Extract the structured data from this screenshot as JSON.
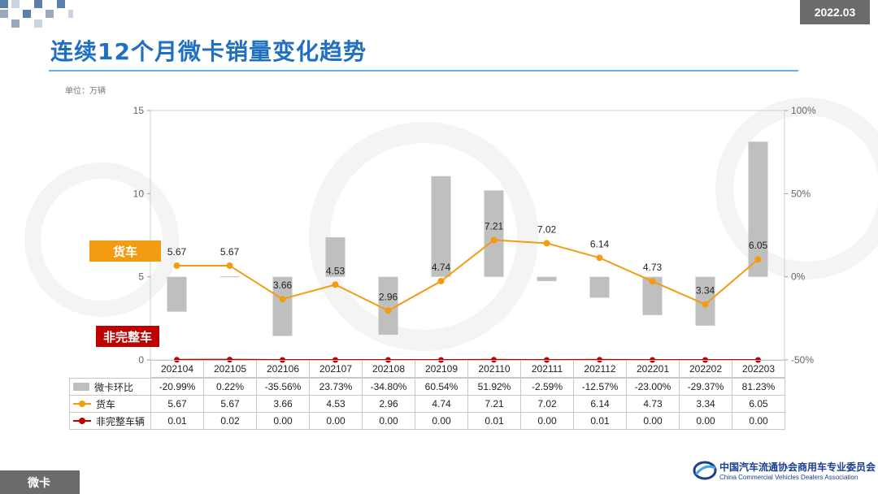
{
  "header": {
    "date": "2022.03",
    "title": "连续12个月微卡销量变化趋势"
  },
  "unit_label": "单位：万辆",
  "tags": {
    "truck": "货车",
    "incomplete": "非完整车"
  },
  "footer": {
    "tab": "微卡",
    "org_cn": "中国汽车流通协会商用车专业委员会",
    "org_en": "China Commercial Vehicles Dealers Association"
  },
  "colors": {
    "accent": "#1f6fc2",
    "truck": "#f39c12",
    "incomplete": "#c00000",
    "bar": "#bfbfbf",
    "tag_truck": "#f39c12",
    "tag_incomplete": "#c00000"
  },
  "chart_data": {
    "type": "bar+line",
    "categories": [
      "202104",
      "202105",
      "202106",
      "202107",
      "202108",
      "202109",
      "202110",
      "202111",
      "202112",
      "202201",
      "202202",
      "202203"
    ],
    "series": [
      {
        "name": "微卡环比",
        "type": "bar",
        "axis": "right",
        "values": [
          -20.99,
          0.22,
          -35.56,
          23.73,
          -34.8,
          60.54,
          51.92,
          -2.59,
          -12.57,
          -23.0,
          -29.37,
          81.23
        ],
        "labels": [
          "-20.99%",
          "0.22%",
          "-35.56%",
          "23.73%",
          "-34.80%",
          "60.54%",
          "51.92%",
          "-2.59%",
          "-12.57%",
          "-23.00%",
          "-29.37%",
          "81.23%"
        ]
      },
      {
        "name": "货车",
        "type": "line",
        "axis": "left",
        "values": [
          5.67,
          5.67,
          3.66,
          4.53,
          2.96,
          4.74,
          7.21,
          7.02,
          6.14,
          4.73,
          3.34,
          6.05
        ],
        "labels": [
          "5.67",
          "5.67",
          "3.66",
          "4.53",
          "2.96",
          "4.74",
          "7.21",
          "7.02",
          "6.14",
          "4.73",
          "3.34",
          "6.05"
        ]
      },
      {
        "name": "非完整车辆",
        "type": "line",
        "axis": "left",
        "values": [
          0.01,
          0.02,
          0.0,
          0.0,
          0.0,
          0.0,
          0.01,
          0.0,
          0.01,
          0.0,
          0.0,
          0.0
        ],
        "labels": [
          "0.01",
          "0.02",
          "0.00",
          "0.00",
          "0.00",
          "0.00",
          "0.01",
          "0.00",
          "0.01",
          "0.00",
          "0.00",
          "0.00"
        ]
      }
    ],
    "y_left": {
      "range": [
        0,
        15
      ],
      "ticks": [
        "0",
        "5",
        "10",
        "15"
      ]
    },
    "y_right": {
      "range": [
        -50,
        100
      ],
      "ticks": [
        "-50%",
        "0%",
        "50%",
        "100%"
      ]
    }
  }
}
